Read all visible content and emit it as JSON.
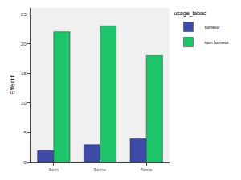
{
  "chart_data": {
    "type": "bar",
    "y_label": "Effectif",
    "legend_title": "usage_tabac",
    "categories": [
      "6èm",
      "5ème",
      "4ème"
    ],
    "series": [
      {
        "name": "fumeur",
        "color": "#3d4aa8",
        "values": [
          2,
          3,
          4
        ]
      },
      {
        "name": "non fumeur",
        "color": "#1ec46a",
        "values": [
          22,
          23,
          18
        ]
      }
    ],
    "ylim": [
      0,
      26
    ],
    "yticks": [
      0,
      5,
      10,
      15,
      20,
      25
    ],
    "grid": false,
    "legend": "upper right"
  }
}
